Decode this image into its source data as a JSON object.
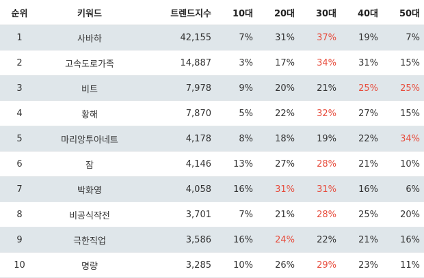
{
  "chart_data": {
    "type": "table",
    "columns": [
      "순위",
      "키워드",
      "트렌드지수",
      "10대",
      "20대",
      "30대",
      "40대",
      "50대"
    ],
    "rows": [
      {
        "rank": "1",
        "keyword": "사바하",
        "trend": "42,155",
        "ages": [
          "7%",
          "31%",
          "37%",
          "19%",
          "7%"
        ],
        "highlight": [
          false,
          false,
          true,
          false,
          false
        ]
      },
      {
        "rank": "2",
        "keyword": "고속도로가족",
        "trend": "14,887",
        "ages": [
          "3%",
          "17%",
          "34%",
          "31%",
          "15%"
        ],
        "highlight": [
          false,
          false,
          true,
          false,
          false
        ]
      },
      {
        "rank": "3",
        "keyword": "비트",
        "trend": "7,978",
        "ages": [
          "9%",
          "20%",
          "21%",
          "25%",
          "25%"
        ],
        "highlight": [
          false,
          false,
          false,
          true,
          true
        ]
      },
      {
        "rank": "4",
        "keyword": "황해",
        "trend": "7,870",
        "ages": [
          "5%",
          "22%",
          "32%",
          "27%",
          "15%"
        ],
        "highlight": [
          false,
          false,
          true,
          false,
          false
        ]
      },
      {
        "rank": "5",
        "keyword": "마리앙투아네트",
        "trend": "4,178",
        "ages": [
          "8%",
          "18%",
          "19%",
          "22%",
          "34%"
        ],
        "highlight": [
          false,
          false,
          false,
          false,
          true
        ]
      },
      {
        "rank": "6",
        "keyword": "잠",
        "trend": "4,146",
        "ages": [
          "13%",
          "27%",
          "28%",
          "21%",
          "10%"
        ],
        "highlight": [
          false,
          false,
          true,
          false,
          false
        ]
      },
      {
        "rank": "7",
        "keyword": "박화영",
        "trend": "4,058",
        "ages": [
          "16%",
          "31%",
          "31%",
          "16%",
          "6%"
        ],
        "highlight": [
          false,
          true,
          true,
          false,
          false
        ]
      },
      {
        "rank": "8",
        "keyword": "비공식작전",
        "trend": "3,701",
        "ages": [
          "7%",
          "21%",
          "28%",
          "25%",
          "20%"
        ],
        "highlight": [
          false,
          false,
          true,
          false,
          false
        ]
      },
      {
        "rank": "9",
        "keyword": "극한직업",
        "trend": "3,586",
        "ages": [
          "16%",
          "24%",
          "22%",
          "21%",
          "16%"
        ],
        "highlight": [
          false,
          true,
          false,
          false,
          false
        ]
      },
      {
        "rank": "10",
        "keyword": "명량",
        "trend": "3,285",
        "ages": [
          "10%",
          "26%",
          "29%",
          "23%",
          "11%"
        ],
        "highlight": [
          false,
          false,
          true,
          false,
          false
        ]
      }
    ],
    "highlight_color": "#e74c3c",
    "stripe_color": "#dfe6ea"
  }
}
